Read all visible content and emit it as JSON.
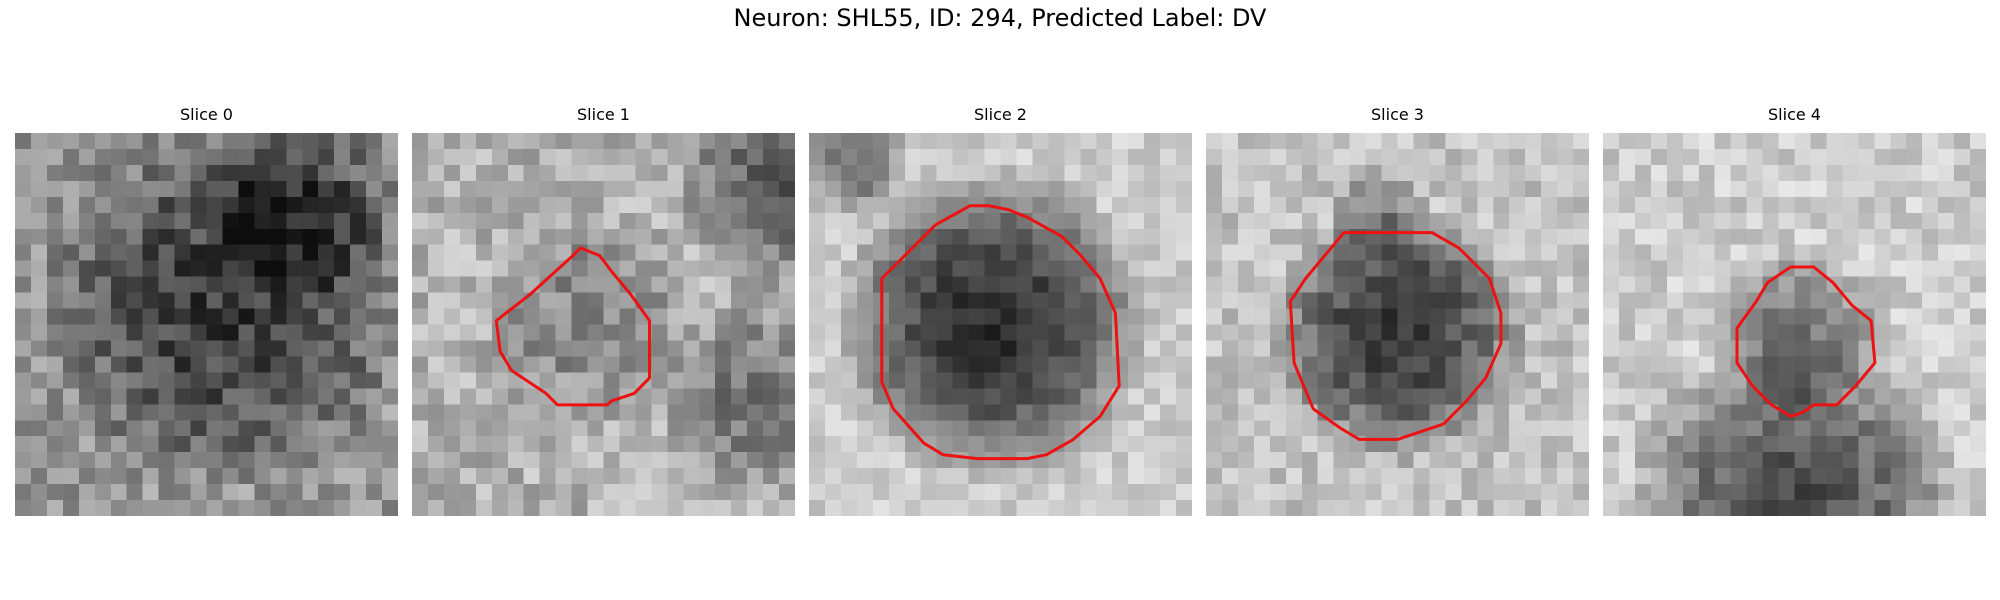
{
  "figure": {
    "title": "Neuron: SHL55, ID: 294, Predicted Label: DV",
    "contour_color": "#ee1111"
  },
  "slices": [
    {
      "title": "Slice 0",
      "has_contour": false,
      "contour": []
    },
    {
      "title": "Slice 1",
      "has_contour": true,
      "contour": [
        [
          0.31,
          0.42
        ],
        [
          0.42,
          0.32
        ],
        [
          0.44,
          0.3
        ],
        [
          0.49,
          0.32
        ],
        [
          0.52,
          0.36
        ],
        [
          0.57,
          0.42
        ],
        [
          0.62,
          0.49
        ],
        [
          0.62,
          0.64
        ],
        [
          0.58,
          0.68
        ],
        [
          0.52,
          0.7
        ],
        [
          0.51,
          0.71
        ],
        [
          0.45,
          0.71
        ],
        [
          0.38,
          0.71
        ],
        [
          0.35,
          0.68
        ],
        [
          0.26,
          0.62
        ],
        [
          0.23,
          0.57
        ],
        [
          0.22,
          0.49
        ]
      ]
    },
    {
      "title": "Slice 2",
      "has_contour": true,
      "contour": [
        [
          0.19,
          0.38
        ],
        [
          0.33,
          0.24
        ],
        [
          0.42,
          0.19
        ],
        [
          0.47,
          0.19
        ],
        [
          0.52,
          0.2
        ],
        [
          0.57,
          0.22
        ],
        [
          0.66,
          0.27
        ],
        [
          0.71,
          0.32
        ],
        [
          0.76,
          0.38
        ],
        [
          0.8,
          0.47
        ],
        [
          0.81,
          0.66
        ],
        [
          0.76,
          0.74
        ],
        [
          0.69,
          0.8
        ],
        [
          0.62,
          0.84
        ],
        [
          0.57,
          0.85
        ],
        [
          0.52,
          0.85
        ],
        [
          0.44,
          0.85
        ],
        [
          0.35,
          0.84
        ],
        [
          0.3,
          0.81
        ],
        [
          0.22,
          0.72
        ],
        [
          0.19,
          0.65
        ]
      ]
    },
    {
      "title": "Slice 3",
      "has_contour": true,
      "contour": [
        [
          0.26,
          0.38
        ],
        [
          0.36,
          0.26
        ],
        [
          0.42,
          0.26
        ],
        [
          0.52,
          0.26
        ],
        [
          0.59,
          0.26
        ],
        [
          0.66,
          0.3
        ],
        [
          0.74,
          0.38
        ],
        [
          0.77,
          0.47
        ],
        [
          0.77,
          0.55
        ],
        [
          0.73,
          0.64
        ],
        [
          0.68,
          0.7
        ],
        [
          0.62,
          0.76
        ],
        [
          0.56,
          0.78
        ],
        [
          0.5,
          0.8
        ],
        [
          0.4,
          0.8
        ],
        [
          0.35,
          0.77
        ],
        [
          0.28,
          0.72
        ],
        [
          0.23,
          0.6
        ],
        [
          0.22,
          0.44
        ]
      ]
    },
    {
      "title": "Slice 4",
      "has_contour": true,
      "contour": [
        [
          0.4,
          0.44
        ],
        [
          0.43,
          0.39
        ],
        [
          0.49,
          0.35
        ],
        [
          0.55,
          0.35
        ],
        [
          0.6,
          0.39
        ],
        [
          0.65,
          0.45
        ],
        [
          0.7,
          0.49
        ],
        [
          0.71,
          0.6
        ],
        [
          0.66,
          0.66
        ],
        [
          0.61,
          0.71
        ],
        [
          0.55,
          0.71
        ],
        [
          0.52,
          0.73
        ],
        [
          0.49,
          0.74
        ],
        [
          0.44,
          0.71
        ],
        [
          0.39,
          0.66
        ],
        [
          0.35,
          0.6
        ],
        [
          0.35,
          0.51
        ]
      ]
    }
  ]
}
